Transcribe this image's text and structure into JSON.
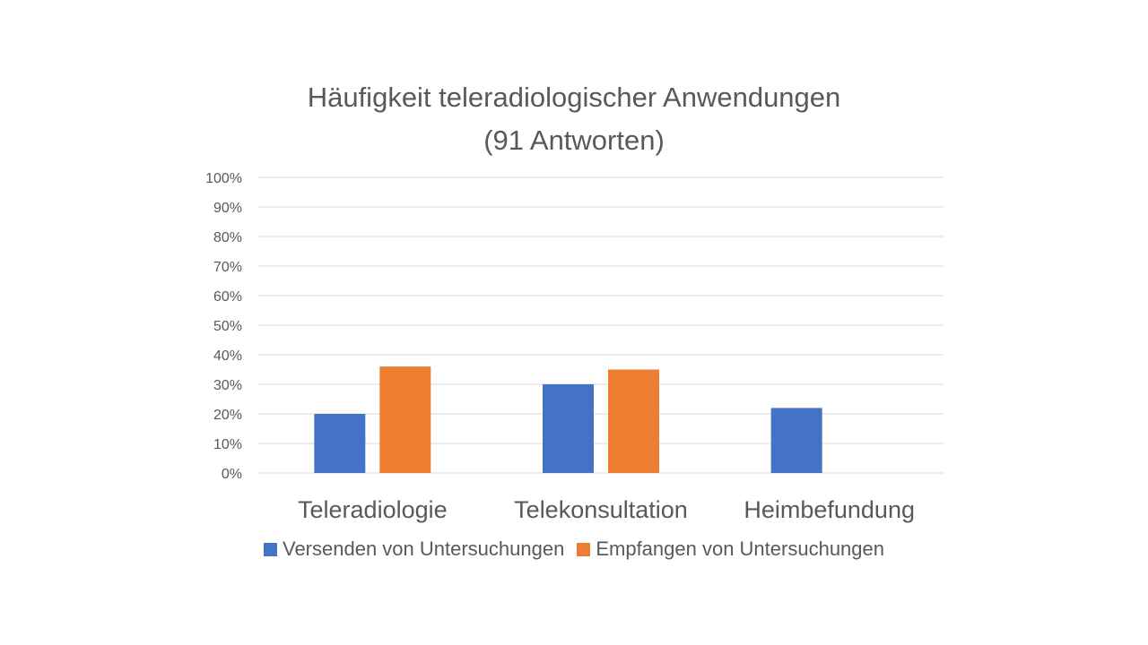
{
  "chart_data": {
    "type": "bar",
    "title": "Häufigkeit teleradiologischer Anwendungen",
    "subtitle": "(91 Antworten)",
    "categories": [
      "Teleradiologie",
      "Telekonsultation",
      "Heimbefundung"
    ],
    "series": [
      {
        "name": "Versenden von Untersuchungen",
        "color": "#4472C4",
        "values": [
          20,
          30,
          22
        ]
      },
      {
        "name": "Empfangen von Untersuchungen",
        "color": "#ED7D31",
        "values": [
          36,
          35,
          0
        ]
      }
    ],
    "ylim": [
      0,
      100
    ],
    "yticks": [
      "0%",
      "10%",
      "20%",
      "30%",
      "40%",
      "50%",
      "60%",
      "70%",
      "80%",
      "90%",
      "100%"
    ],
    "grid": true,
    "legend_position": "bottom"
  }
}
